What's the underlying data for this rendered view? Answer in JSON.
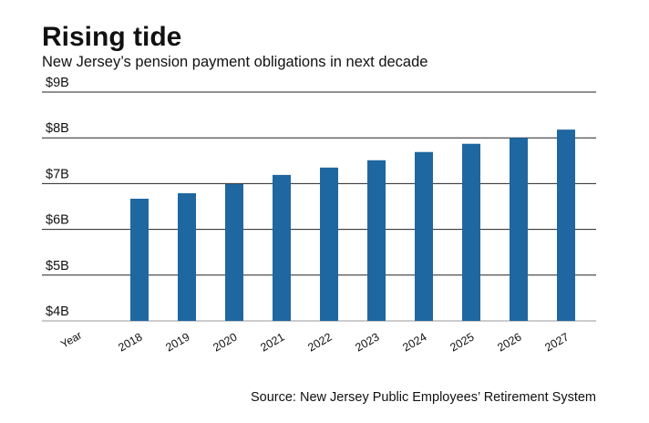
{
  "chart_data": {
    "type": "bar",
    "title": "Rising tide",
    "subtitle": "New Jersey’s pension payment obligations in next decade",
    "x_label": "Year",
    "categories": [
      "2018",
      "2019",
      "2020",
      "2021",
      "2022",
      "2023",
      "2024",
      "2025",
      "2026",
      "2027"
    ],
    "values": [
      6.67,
      6.79,
      6.99,
      7.19,
      7.35,
      7.51,
      7.69,
      7.87,
      8.0,
      8.18
    ],
    "color": "#1f67a0",
    "ylim": [
      4,
      9
    ],
    "yticks": [
      {
        "value": 4,
        "label": "$4B"
      },
      {
        "value": 5,
        "label": "$5B"
      },
      {
        "value": 6,
        "label": "$6B"
      },
      {
        "value": 7,
        "label": "$7B"
      },
      {
        "value": 8,
        "label": "$8B"
      },
      {
        "value": 9,
        "label": "$9B"
      }
    ],
    "grid": true,
    "source": "Source: New Jersey Public Employees’ Retirement System"
  }
}
